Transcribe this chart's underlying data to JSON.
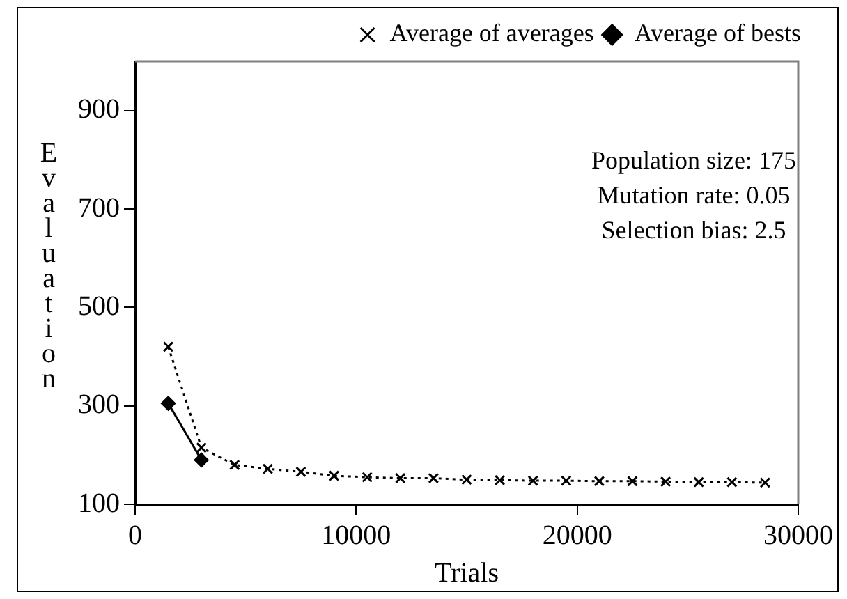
{
  "chart_data": {
    "type": "line",
    "xlabel": "Trials",
    "ylabel": "Evaluation",
    "x": [
      1500,
      3000,
      4500,
      6000,
      7500,
      9000,
      10500,
      12000,
      13500,
      15000,
      16500,
      18000,
      19500,
      21000,
      22500,
      24000,
      25500,
      27000,
      28500
    ],
    "series": [
      {
        "name": "Average of bests",
        "color": "#000000",
        "marker": "diamond",
        "line_style": "solid",
        "values": [
          305,
          190,
          null,
          null,
          null,
          null,
          null,
          null,
          null,
          null,
          null,
          null,
          null,
          null,
          null,
          null,
          null,
          null,
          null
        ]
      },
      {
        "name": "Average of averages",
        "color": "#000000",
        "marker": "cross",
        "line_style": "dotted",
        "values": [
          420,
          215,
          180,
          172,
          166,
          158,
          155,
          153,
          153,
          150,
          149,
          148,
          148,
          147,
          147,
          146,
          145,
          145,
          144
        ]
      }
    ],
    "xlim": [
      0,
      30000
    ],
    "xticks": [
      0,
      10000,
      20000,
      30000
    ],
    "ylim": [
      100,
      1000
    ],
    "yticks": [
      100,
      300,
      500,
      700,
      900
    ],
    "grid": false,
    "legend": "top right",
    "annotations": [
      "Population size: 175",
      "Mutation rate: 0.05",
      "Selection bias: 2.5"
    ]
  }
}
